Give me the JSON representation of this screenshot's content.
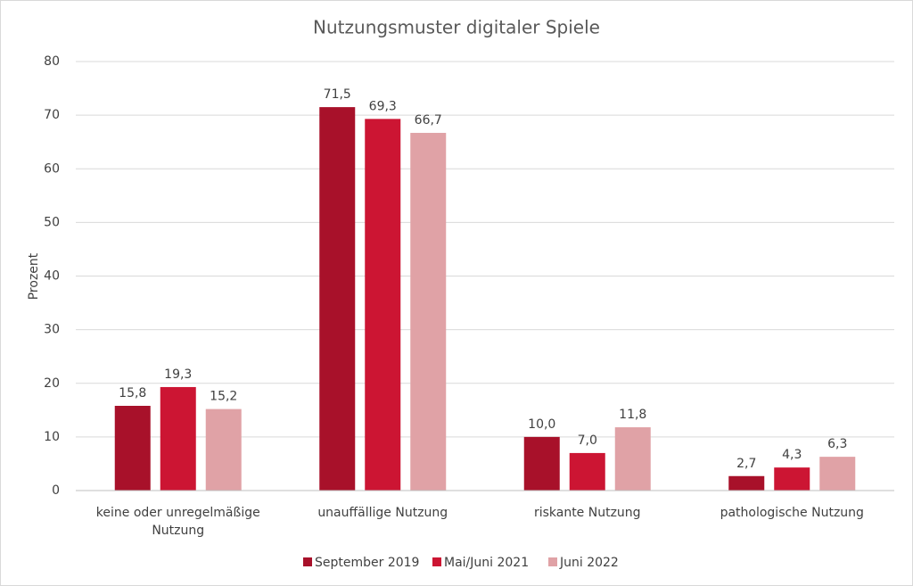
{
  "chart_data": {
    "type": "bar",
    "title": "Nutzungsmuster digitaler Spiele",
    "y_label": "Prozent",
    "categories": [
      "keine oder unregelmäßige Nutzung",
      "unauffällige Nutzung",
      "riskante Nutzung",
      "pathologische Nutzung"
    ],
    "series": [
      {
        "name": "September 2019",
        "color": "#a8112a",
        "values": [
          15.8,
          71.5,
          10.0,
          2.7
        ],
        "value_labels": [
          "15,8",
          "71,5",
          "10,0",
          "2,7"
        ]
      },
      {
        "name": "Mai/Juni 2021",
        "color": "#cc1533",
        "values": [
          19.3,
          69.3,
          7.0,
          4.3
        ],
        "value_labels": [
          "19,3",
          "69,3",
          "7,0",
          "4,3"
        ]
      },
      {
        "name": "Juni 2022",
        "color": "#e0a2a6",
        "values": [
          15.2,
          66.7,
          11.8,
          6.3
        ],
        "value_labels": [
          "15,2",
          "66,7",
          "11,8",
          "6,3"
        ]
      }
    ],
    "ylim": [
      0,
      80
    ],
    "yticks": [
      0,
      10,
      20,
      30,
      40,
      50,
      60,
      70,
      80
    ],
    "grid": true,
    "legend": "bottom"
  }
}
